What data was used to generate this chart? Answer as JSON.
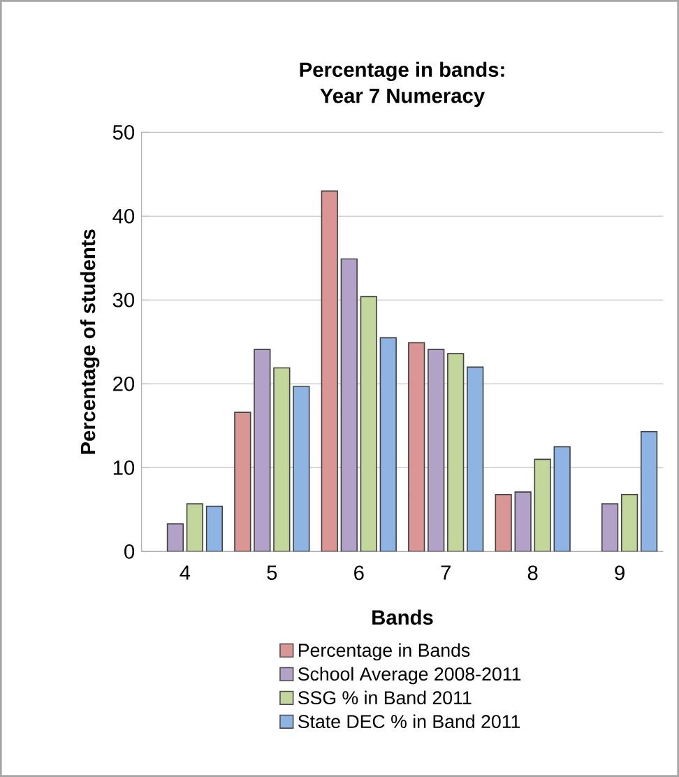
{
  "chart_data": {
    "type": "bar",
    "title": "Percentage in bands:\nYear 7 Numeracy",
    "xlabel": "Bands",
    "ylabel": "Percentage of students",
    "categories": [
      "4",
      "5",
      "6",
      "7",
      "8",
      "9"
    ],
    "series": [
      {
        "name": "Percentage in Bands",
        "color": "#d99694",
        "values": [
          null,
          16.6,
          43.0,
          24.9,
          6.8,
          null
        ]
      },
      {
        "name": "School Average 2008-2011",
        "color": "#b3a2c7",
        "values": [
          3.3,
          24.1,
          34.9,
          24.1,
          7.1,
          5.7
        ]
      },
      {
        "name": "SSG % in Band 2011",
        "color": "#c3d69b",
        "values": [
          5.7,
          21.9,
          30.4,
          23.6,
          11.0,
          6.8
        ]
      },
      {
        "name": "State DEC % in Band 2011",
        "color": "#8eb4e3",
        "values": [
          5.4,
          19.7,
          25.5,
          22.0,
          12.5,
          14.3
        ]
      }
    ],
    "ylim": [
      0,
      50
    ],
    "yticks": [
      0,
      10,
      20,
      30,
      40,
      50
    ],
    "grid": "y",
    "legend": "bottom"
  }
}
